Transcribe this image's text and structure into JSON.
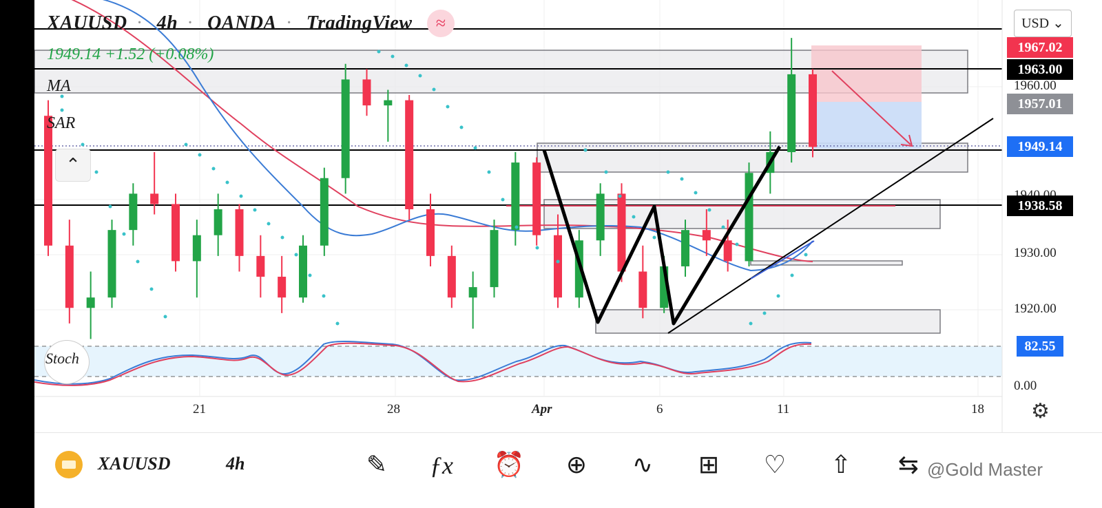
{
  "header": {
    "symbol": "XAUUSD",
    "interval": "4h",
    "broker": "OANDA",
    "platform": "TradingView",
    "ohlc": "1949.14 +1.52 (+0.08%)"
  },
  "indicators": [
    "MA",
    "SAR",
    "Stoch"
  ],
  "currency_button": "USD ⌄",
  "price_labels": [
    {
      "text": "1967.02",
      "bg": "#f2344f"
    },
    {
      "text": "1963.00",
      "bg": "#000000"
    },
    {
      "text": "1957.01",
      "bg": "#8e9096"
    },
    {
      "text": "1949.14",
      "bg": "#1e6ff5"
    },
    {
      "text": "1938.58",
      "bg": "#000000"
    },
    {
      "text": "82.55",
      "bg": "#1e6ff5"
    }
  ],
  "axis_ticks": [
    "1960.00",
    "1940.00",
    "1930.00",
    "1920.00",
    "0.00"
  ],
  "time_labels": [
    "21",
    "28",
    "Apr",
    "6",
    "11",
    "18"
  ],
  "toolbar": {
    "symbol": "XAUUSD",
    "interval": "4h",
    "icons": [
      "draw-icon",
      "fx-icon",
      "alert-icon",
      "add-icon",
      "chart-type-icon",
      "layout-icon",
      "idea-icon",
      "share-icon",
      "replay-icon",
      "more-icon"
    ],
    "watermark": "@Gold Master"
  },
  "colors": {
    "up": "#22a447",
    "down": "#f2344f",
    "ma_fast": "#3a7bd5",
    "ma_slow": "#e0405e",
    "sar": "#39c2c9",
    "stoch_k": "#3a7bd5",
    "stoch_d": "#e0405e"
  },
  "chart_data": {
    "type": "candlestick",
    "y_range": [
      1913,
      1972
    ],
    "ohlc_approx": [
      [
        1955,
        1958,
        1928,
        1930
      ],
      [
        1930,
        1935,
        1915,
        1918
      ],
      [
        1918,
        1925,
        1912,
        1920
      ],
      [
        1920,
        1935,
        1918,
        1933
      ],
      [
        1933,
        1942,
        1930,
        1940
      ],
      [
        1940,
        1948,
        1936,
        1938
      ],
      [
        1938,
        1940,
        1925,
        1927
      ],
      [
        1927,
        1935,
        1920,
        1932
      ],
      [
        1932,
        1940,
        1928,
        1937
      ],
      [
        1937,
        1938,
        1925,
        1928
      ],
      [
        1928,
        1932,
        1920,
        1924
      ],
      [
        1924,
        1928,
        1917,
        1920
      ],
      [
        1920,
        1932,
        1919,
        1930
      ],
      [
        1930,
        1945,
        1928,
        1943
      ],
      [
        1943,
        1965,
        1940,
        1962
      ],
      [
        1962,
        1964,
        1955,
        1957
      ],
      [
        1957,
        1960,
        1950,
        1958
      ],
      [
        1958,
        1959,
        1935,
        1937
      ],
      [
        1937,
        1940,
        1926,
        1928
      ],
      [
        1928,
        1930,
        1918,
        1920
      ],
      [
        1920,
        1925,
        1914,
        1922
      ],
      [
        1922,
        1935,
        1920,
        1933
      ],
      [
        1933,
        1948,
        1930,
        1946
      ],
      [
        1946,
        1947,
        1930,
        1932
      ],
      [
        1932,
        1936,
        1918,
        1920
      ],
      [
        1920,
        1933,
        1918,
        1931
      ],
      [
        1931,
        1942,
        1928,
        1940
      ],
      [
        1940,
        1942,
        1923,
        1925
      ],
      [
        1925,
        1930,
        1916,
        1918
      ],
      [
        1918,
        1928,
        1917,
        1926
      ],
      [
        1926,
        1935,
        1924,
        1933
      ],
      [
        1933,
        1937,
        1928,
        1931
      ],
      [
        1931,
        1935,
        1925,
        1927
      ],
      [
        1927,
        1946,
        1926,
        1944
      ],
      [
        1944,
        1952,
        1940,
        1948
      ],
      [
        1948,
        1970,
        1946,
        1963
      ],
      [
        1963,
        1964,
        1947,
        1949
      ]
    ],
    "drawn_levels": [
      1963.0,
      1949.14,
      1938.58
    ]
  }
}
